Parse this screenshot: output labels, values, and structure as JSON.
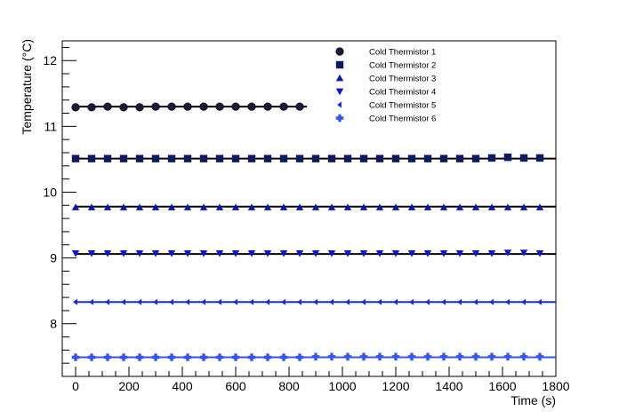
{
  "chart_data": {
    "type": "scatter",
    "title": "",
    "xlabel": "Time (s)",
    "ylabel": "Temperature (°C)",
    "xlim": [
      -50,
      1800
    ],
    "ylim": [
      7.2,
      12.3
    ],
    "xticks": [
      0,
      200,
      400,
      600,
      800,
      1000,
      1200,
      1400,
      1600,
      1800
    ],
    "yticks": [
      8,
      9,
      10,
      11,
      12
    ],
    "grid": false,
    "legend_position": "top-right",
    "series": [
      {
        "name": "Cold Thermistor 1",
        "marker": "circle",
        "color": "#1a1a3a",
        "fit_line_color": "#000000",
        "x": [
          0,
          60,
          120,
          180,
          240,
          300,
          360,
          420,
          480,
          540,
          600,
          660,
          720,
          780,
          840
        ],
        "y": [
          11.29,
          11.29,
          11.3,
          11.29,
          11.29,
          11.3,
          11.3,
          11.3,
          11.3,
          11.3,
          11.3,
          11.3,
          11.3,
          11.3,
          11.3
        ],
        "fit": 11.3
      },
      {
        "name": "Cold Thermistor 2",
        "marker": "square",
        "color": "#0c1a5e",
        "fit_line_color": "#000000",
        "x": [
          0,
          60,
          120,
          180,
          240,
          300,
          360,
          420,
          480,
          540,
          600,
          660,
          720,
          780,
          840,
          900,
          960,
          1020,
          1080,
          1140,
          1200,
          1260,
          1320,
          1380,
          1440,
          1500,
          1560,
          1620,
          1680,
          1740
        ],
        "y": [
          10.51,
          10.51,
          10.51,
          10.51,
          10.51,
          10.51,
          10.51,
          10.51,
          10.51,
          10.51,
          10.51,
          10.51,
          10.51,
          10.51,
          10.51,
          10.51,
          10.51,
          10.51,
          10.51,
          10.51,
          10.51,
          10.51,
          10.51,
          10.51,
          10.51,
          10.51,
          10.52,
          10.53,
          10.52,
          10.52
        ],
        "fit": 10.51
      },
      {
        "name": "Cold Thermistor 3",
        "marker": "triangle-up",
        "color": "#0a1aa8",
        "fit_line_color": "#000000",
        "x": [
          0,
          60,
          120,
          180,
          240,
          300,
          360,
          420,
          480,
          540,
          600,
          660,
          720,
          780,
          840,
          900,
          960,
          1020,
          1080,
          1140,
          1200,
          1260,
          1320,
          1380,
          1440,
          1500,
          1560,
          1620,
          1680,
          1740
        ],
        "y": [
          9.77,
          9.77,
          9.77,
          9.77,
          9.77,
          9.77,
          9.77,
          9.77,
          9.77,
          9.77,
          9.77,
          9.77,
          9.77,
          9.77,
          9.77,
          9.77,
          9.77,
          9.77,
          9.77,
          9.77,
          9.77,
          9.77,
          9.77,
          9.77,
          9.77,
          9.77,
          9.77,
          9.77,
          9.77,
          9.77
        ],
        "fit": 9.78
      },
      {
        "name": "Cold Thermistor 4",
        "marker": "triangle-down",
        "color": "#0f14cc",
        "fit_line_color": "#000000",
        "x": [
          0,
          60,
          120,
          180,
          240,
          300,
          360,
          420,
          480,
          540,
          600,
          660,
          720,
          780,
          840,
          900,
          960,
          1020,
          1080,
          1140,
          1200,
          1260,
          1320,
          1380,
          1440,
          1500,
          1560,
          1620,
          1680,
          1740
        ],
        "y": [
          9.07,
          9.07,
          9.07,
          9.07,
          9.07,
          9.07,
          9.07,
          9.07,
          9.07,
          9.07,
          9.07,
          9.07,
          9.07,
          9.07,
          9.07,
          9.07,
          9.07,
          9.07,
          9.07,
          9.07,
          9.07,
          9.07,
          9.07,
          9.07,
          9.07,
          9.07,
          9.07,
          9.08,
          9.08,
          9.07
        ],
        "fit": 9.06
      },
      {
        "name": "Cold Thermistor 5",
        "marker": "triangle-left",
        "color": "#1a28e6",
        "fit_line_color": "#1a28e6",
        "x": [
          0,
          60,
          120,
          180,
          240,
          300,
          360,
          420,
          480,
          540,
          600,
          660,
          720,
          780,
          840,
          900,
          960,
          1020,
          1080,
          1140,
          1200,
          1260,
          1320,
          1380,
          1440,
          1500,
          1560,
          1620,
          1680,
          1740
        ],
        "y": [
          8.33,
          8.33,
          8.33,
          8.33,
          8.33,
          8.33,
          8.33,
          8.33,
          8.33,
          8.33,
          8.33,
          8.33,
          8.33,
          8.33,
          8.33,
          8.33,
          8.33,
          8.33,
          8.33,
          8.33,
          8.33,
          8.33,
          8.33,
          8.33,
          8.33,
          8.33,
          8.33,
          8.33,
          8.33,
          8.33
        ],
        "fit": 8.33
      },
      {
        "name": "Cold Thermistor 6",
        "marker": "cross",
        "color": "#3355ee",
        "fit_line_color": "#3355ee",
        "x": [
          0,
          60,
          120,
          180,
          240,
          300,
          360,
          420,
          480,
          540,
          600,
          660,
          720,
          780,
          840,
          900,
          960,
          1020,
          1080,
          1140,
          1200,
          1260,
          1320,
          1380,
          1440,
          1500,
          1560,
          1620,
          1680,
          1740
        ],
        "y": [
          7.49,
          7.49,
          7.49,
          7.49,
          7.49,
          7.49,
          7.49,
          7.49,
          7.49,
          7.49,
          7.49,
          7.49,
          7.49,
          7.49,
          7.49,
          7.5,
          7.5,
          7.5,
          7.5,
          7.5,
          7.5,
          7.5,
          7.5,
          7.5,
          7.5,
          7.5,
          7.5,
          7.5,
          7.5,
          7.5
        ],
        "fit": 7.49
      }
    ]
  }
}
